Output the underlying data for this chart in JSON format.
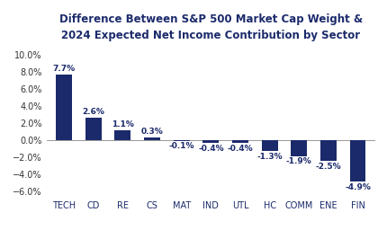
{
  "categories": [
    "TECH",
    "CD",
    "RE",
    "CS",
    "MAT",
    "IND",
    "UTL",
    "HC",
    "COMM",
    "ENE",
    "FIN"
  ],
  "values": [
    7.7,
    2.6,
    1.1,
    0.3,
    -0.1,
    -0.4,
    -0.4,
    -1.3,
    -1.9,
    -2.5,
    -4.9
  ],
  "labels": [
    "7.7%",
    "2.6%",
    "1.1%",
    "0.3%",
    "-0.1%",
    "-0.4%",
    "-0.4%",
    "-1.3%",
    "-1.9%",
    "-2.5%",
    "-4.9%"
  ],
  "bar_color": "#1b2a6b",
  "title_line1": "Difference Between S&P 500 Market Cap Weight &",
  "title_line2": "2024 Expected Net Income Contribution by Sector",
  "ylim": [
    -6.8,
    11.0
  ],
  "yticks": [
    -6.0,
    -4.0,
    -2.0,
    0.0,
    2.0,
    4.0,
    6.0,
    8.0,
    10.0
  ],
  "title_fontsize": 8.5,
  "tick_fontsize": 7.0,
  "label_fontsize": 6.5,
  "background_color": "#ffffff"
}
